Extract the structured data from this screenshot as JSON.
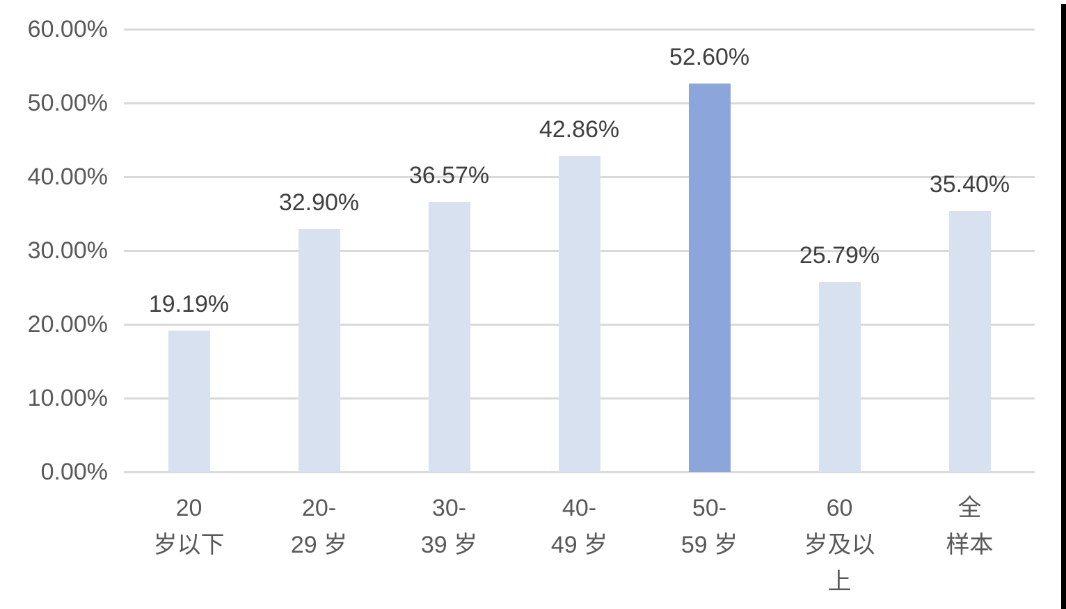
{
  "chart_data": {
    "type": "bar",
    "title": "",
    "xlabel": "",
    "ylabel": "",
    "legend": null,
    "grid": true,
    "categories": [
      {
        "label": "20 岁以下",
        "lines": "20\n岁以下"
      },
      {
        "label": "20-29 岁",
        "lines": "20-\n29 岁"
      },
      {
        "label": "30-39 岁",
        "lines": "30-\n39 岁"
      },
      {
        "label": "40-49 岁",
        "lines": "40-\n49 岁"
      },
      {
        "label": "50-59 岁",
        "lines": "50-\n59 岁"
      },
      {
        "label": "60 岁及以上",
        "lines": "60\n岁及以\n上"
      },
      {
        "label": "全样本",
        "lines": "全\n样本"
      }
    ],
    "values": [
      19.19,
      32.9,
      36.57,
      42.86,
      52.6,
      25.79,
      35.4
    ],
    "data_labels": [
      "19.19%",
      "32.90%",
      "36.57%",
      "42.86%",
      "52.60%",
      "25.79%",
      "35.40%"
    ],
    "highlight_index": 4,
    "y_axis": {
      "min": 0,
      "max": 60,
      "step": 10,
      "tick_labels": [
        "0.00%",
        "10.00%",
        "20.00%",
        "30.00%",
        "40.00%",
        "50.00%",
        "60.00%"
      ]
    },
    "colors": {
      "bar": "#d8e1f0",
      "bar_highlight": "#8ca6db",
      "gridline": "#d9d9d9",
      "axis_text": "#595959",
      "data_label_text": "#3f3f3f",
      "background": "#ffffff"
    }
  }
}
